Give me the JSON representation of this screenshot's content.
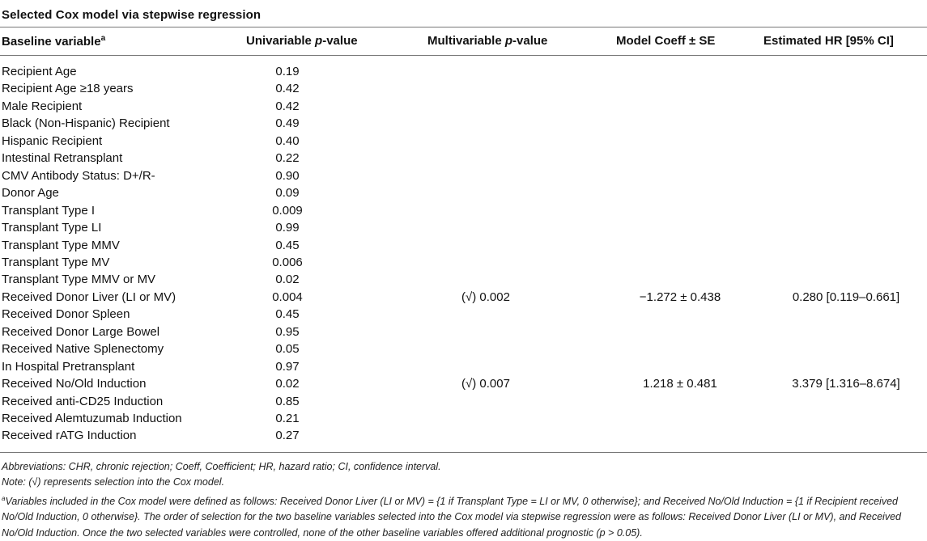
{
  "table": {
    "title": "Selected Cox model via stepwise regression",
    "headers": {
      "baseline": "Baseline variable",
      "baseline_sup": "a",
      "univariable_pre": "Univariable ",
      "univariable_p": "p",
      "univariable_post": "-value",
      "multivariable_pre": "Multivariable ",
      "multivariable_p": "p",
      "multivariable_post": "-value",
      "coeff": "Model Coeff ± SE",
      "hr": "Estimated HR [95% CI]"
    },
    "rows": [
      {
        "variable": "Recipient Age",
        "univariable": "0.19",
        "multivariable": "",
        "coeff": "",
        "hr": ""
      },
      {
        "variable": "Recipient Age ≥18 years",
        "univariable": "0.42",
        "multivariable": "",
        "coeff": "",
        "hr": ""
      },
      {
        "variable": "Male Recipient",
        "univariable": "0.42",
        "multivariable": "",
        "coeff": "",
        "hr": ""
      },
      {
        "variable": "Black (Non-Hispanic) Recipient",
        "univariable": "0.49",
        "multivariable": "",
        "coeff": "",
        "hr": ""
      },
      {
        "variable": "Hispanic Recipient",
        "univariable": "0.40",
        "multivariable": "",
        "coeff": "",
        "hr": ""
      },
      {
        "variable": "Intestinal Retransplant",
        "univariable": "0.22",
        "multivariable": "",
        "coeff": "",
        "hr": ""
      },
      {
        "variable": "CMV Antibody Status: D+/R-",
        "univariable": "0.90",
        "multivariable": "",
        "coeff": "",
        "hr": ""
      },
      {
        "variable": "Donor Age",
        "univariable": "0.09",
        "multivariable": "",
        "coeff": "",
        "hr": ""
      },
      {
        "variable": "Transplant Type I",
        "univariable": "0.009",
        "multivariable": "",
        "coeff": "",
        "hr": ""
      },
      {
        "variable": "Transplant Type LI",
        "univariable": "0.99",
        "multivariable": "",
        "coeff": "",
        "hr": ""
      },
      {
        "variable": "Transplant Type MMV",
        "univariable": "0.45",
        "multivariable": "",
        "coeff": "",
        "hr": ""
      },
      {
        "variable": "Transplant Type MV",
        "univariable": "0.006",
        "multivariable": "",
        "coeff": "",
        "hr": ""
      },
      {
        "variable": "Transplant Type MMV or MV",
        "univariable": "0.02",
        "multivariable": "",
        "coeff": "",
        "hr": ""
      },
      {
        "variable": "Received Donor Liver (LI or MV)",
        "univariable": "0.004",
        "multivariable": "(√) 0.002",
        "coeff": "−1.272 ± 0.438",
        "hr": "0.280 [0.119–0.661]"
      },
      {
        "variable": "Received Donor Spleen",
        "univariable": "0.45",
        "multivariable": "",
        "coeff": "",
        "hr": ""
      },
      {
        "variable": "Received Donor Large Bowel",
        "univariable": "0.95",
        "multivariable": "",
        "coeff": "",
        "hr": ""
      },
      {
        "variable": "Received Native Splenectomy",
        "univariable": "0.05",
        "multivariable": "",
        "coeff": "",
        "hr": ""
      },
      {
        "variable": "In Hospital Pretransplant",
        "univariable": "0.97",
        "multivariable": "",
        "coeff": "",
        "hr": ""
      },
      {
        "variable": "Received No/Old Induction",
        "univariable": "0.02",
        "multivariable": "(√) 0.007",
        "coeff": "1.218 ± 0.481",
        "hr": "3.379 [1.316–8.674]"
      },
      {
        "variable": "Received anti-CD25 Induction",
        "univariable": "0.85",
        "multivariable": "",
        "coeff": "",
        "hr": ""
      },
      {
        "variable": "Received Alemtuzumab Induction",
        "univariable": "0.21",
        "multivariable": "",
        "coeff": "",
        "hr": ""
      },
      {
        "variable": "Received rATG Induction",
        "univariable": "0.27",
        "multivariable": "",
        "coeff": "",
        "hr": ""
      }
    ]
  },
  "footnotes": {
    "abbreviations": "Abbreviations: CHR, chronic rejection; Coeff, Coefficient; HR, hazard ratio; CI, confidence interval.",
    "note": "Note: (√) represents selection into the Cox model.",
    "footnote_a_marker": "a",
    "footnote_a": "Variables included in the Cox model were defined as follows: Received Donor Liver (LI or MV) = {1 if Transplant Type = LI or MV, 0 otherwise}; and Received No/Old Induction = {1 if Recipient received No/Old Induction, 0 otherwise}. The order of selection for the two baseline variables selected into the Cox model via stepwise regression were as follows: Received Donor Liver (LI or MV), and Received No/Old Induction. Once the two selected variables were controlled, none of the other baseline variables offered additional prognostic (p > 0.05)."
  }
}
